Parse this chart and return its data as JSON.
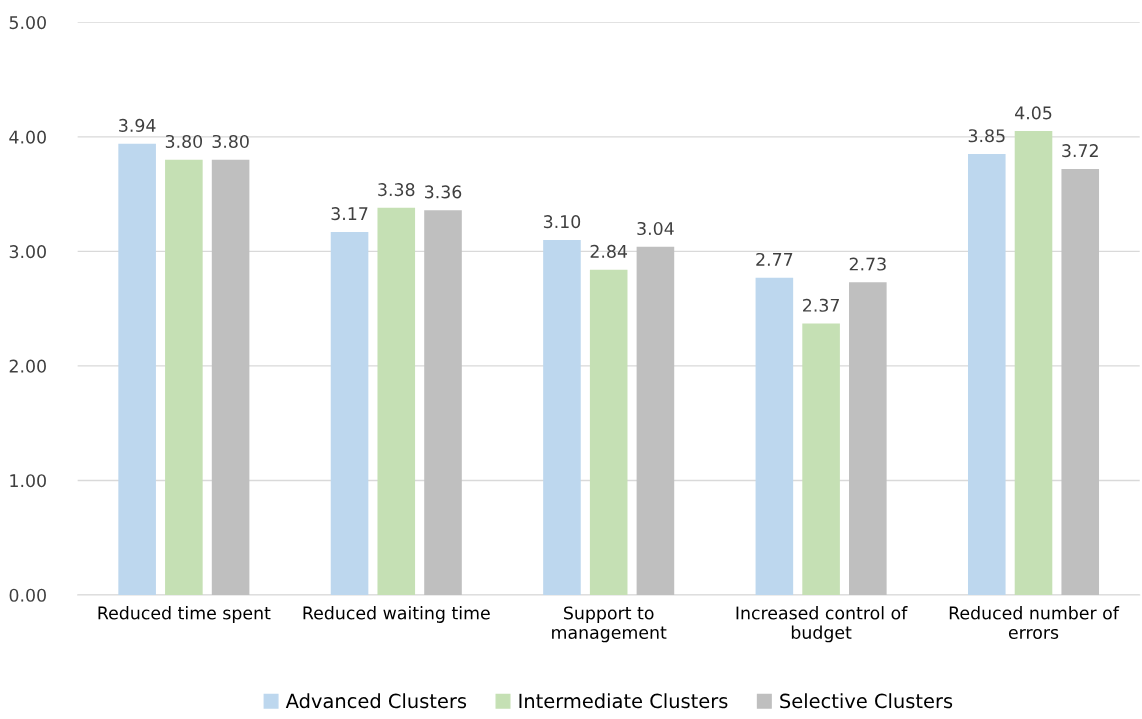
{
  "chart_data": {
    "type": "bar",
    "categories": [
      "Reduced time spent",
      "Reduced waiting time",
      "Support to\nmanagement",
      "Increased control of\nbudget",
      "Reduced number of\nerrors"
    ],
    "series": [
      {
        "name": "Advanced Clusters",
        "color": "#bdd7ee",
        "values": [
          3.94,
          3.17,
          3.1,
          2.77,
          3.85
        ],
        "value_labels": [
          "3.94",
          "3.17",
          "3.10",
          "2.77",
          "3.85"
        ]
      },
      {
        "name": "Intermediate Clusters",
        "color": "#c5e0b4",
        "values": [
          3.8,
          3.38,
          2.84,
          2.37,
          4.05
        ],
        "value_labels": [
          "3.80",
          "3.38",
          "2.84",
          "2.37",
          "4.05"
        ]
      },
      {
        "name": "Selective Clusters",
        "color": "#bfbfbf",
        "values": [
          3.8,
          3.36,
          3.04,
          2.73,
          3.72
        ],
        "value_labels": [
          "3.80",
          "3.36",
          "3.04",
          "2.73",
          "3.72"
        ]
      }
    ],
    "ylim": [
      0,
      5
    ],
    "yticks": [
      {
        "value": 0,
        "label": "0.00"
      },
      {
        "value": 1,
        "label": "1.00"
      },
      {
        "value": 2,
        "label": "2.00"
      },
      {
        "value": 3,
        "label": "3.00"
      },
      {
        "value": 4,
        "label": "4.00"
      },
      {
        "value": 5,
        "label": "5.00"
      }
    ],
    "grid": "y",
    "legend": "bottom"
  }
}
